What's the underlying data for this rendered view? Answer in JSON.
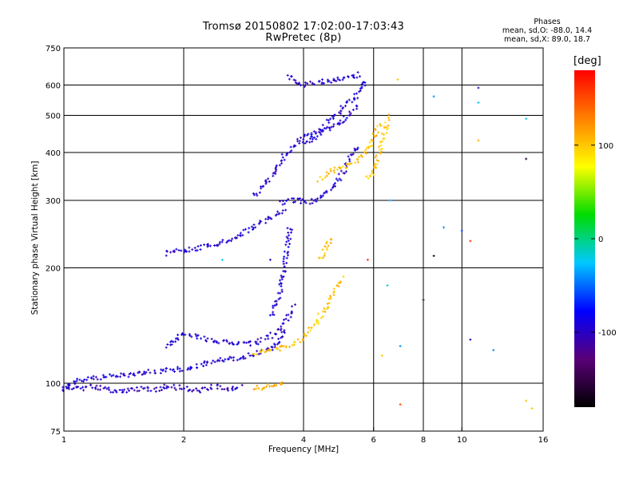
{
  "header": {
    "title_line1": "Tromsø 20150802 17:02:00-17:03:43",
    "title_line2": "RwPretec (8p)"
  },
  "phases_box": {
    "heading": "Phases",
    "mode_o": "mean, sd,O: -88.0, 14.4",
    "mode_x": "mean, sd,X:  89.0, 18.7"
  },
  "colorbar": {
    "unit_label": "[deg]",
    "range": [
      -180,
      180
    ],
    "tick_labels": [
      "100",
      "0",
      "-100"
    ],
    "tick_values": [
      100,
      0,
      -100
    ],
    "colormap": [
      "#000000",
      "#5a0078",
      "#0000ff",
      "#00c8ff",
      "#00dc00",
      "#ffff00",
      "#ff8000",
      "#ff0000"
    ]
  },
  "chart_data": {
    "type": "scatter",
    "title": "Tromsø 20150802 17:02:00-17:03:43",
    "subtitle": "RwPretec (8p)",
    "xlabel": "Frequency [MHz]",
    "ylabel": "Stationary phase Virtual Height [km]",
    "xscale": "log",
    "yscale": "log",
    "xlim": [
      1,
      16
    ],
    "ylim": [
      75,
      750
    ],
    "xticks": [
      1,
      2,
      4,
      6,
      8,
      10,
      16
    ],
    "yticks": [
      75,
      100,
      200,
      300,
      400,
      500,
      600,
      750
    ],
    "grid": true,
    "legend": "colorbar right (phase, deg)",
    "traces": [
      {
        "mode": "O",
        "phase_deg": -95,
        "x": [
          1.0,
          1.05,
          1.1,
          1.2,
          1.3,
          1.4,
          1.5,
          1.6,
          1.8,
          2.0,
          2.1,
          2.3,
          2.5,
          2.8,
          3.0,
          3.2,
          3.4,
          3.5,
          3.6
        ],
        "y": [
          98,
          100,
          102,
          103,
          104,
          105,
          106,
          107,
          108,
          109,
          110,
          113,
          115,
          117,
          119,
          121,
          124,
          130,
          140
        ]
      },
      {
        "mode": "O",
        "phase_deg": -95,
        "x": [
          3.3,
          3.4,
          3.5,
          3.55,
          3.6,
          3.65,
          3.7
        ],
        "y": [
          150,
          160,
          175,
          190,
          210,
          230,
          260
        ]
      },
      {
        "mode": "O",
        "phase_deg": -95,
        "x": [
          1.8,
          1.9,
          2.0,
          2.2,
          2.5,
          2.8,
          3.0,
          3.2,
          3.4,
          3.6,
          3.8
        ],
        "y": [
          125,
          130,
          135,
          132,
          128,
          126,
          127,
          130,
          135,
          145,
          160
        ]
      },
      {
        "mode": "O",
        "phase_deg": -95,
        "x": [
          1.8,
          2.0,
          2.2,
          2.4,
          2.6,
          2.8,
          3.0,
          3.2,
          3.4,
          3.6
        ],
        "y": [
          218,
          222,
          226,
          230,
          236,
          245,
          255,
          265,
          275,
          285
        ]
      },
      {
        "mode": "O",
        "phase_deg": -95,
        "x": [
          3.5,
          3.7,
          3.9,
          4.1,
          4.3,
          4.5,
          4.8,
          5.0,
          5.2,
          5.5
        ],
        "y": [
          296,
          300,
          300,
          297,
          300,
          310,
          330,
          350,
          380,
          420
        ]
      },
      {
        "mode": "O",
        "phase_deg": -95,
        "x": [
          3.0,
          3.2,
          3.4,
          3.6,
          3.8,
          4.0,
          4.2,
          4.4,
          4.6,
          4.8,
          5.0,
          5.2,
          5.5
        ],
        "y": [
          310,
          330,
          360,
          395,
          420,
          440,
          450,
          455,
          460,
          470,
          480,
          500,
          530
        ]
      },
      {
        "mode": "O",
        "phase_deg": -95,
        "x": [
          4.0,
          4.2,
          4.4,
          4.6,
          4.8,
          5.0,
          5.2,
          5.4,
          5.6,
          5.8
        ],
        "y": [
          420,
          430,
          450,
          480,
          500,
          520,
          540,
          560,
          590,
          620
        ]
      },
      {
        "mode": "O",
        "phase_deg": -95,
        "x": [
          3.7,
          3.8,
          4.0,
          4.2,
          4.4,
          4.6,
          4.8,
          5.0,
          5.2,
          5.4,
          5.6
        ],
        "y": [
          640,
          610,
          600,
          605,
          610,
          615,
          620,
          625,
          630,
          635,
          640
        ]
      },
      {
        "mode": "O",
        "phase_deg": -100,
        "x": [
          1.0,
          1.1,
          1.2,
          1.3,
          1.4,
          1.5,
          1.6,
          1.7,
          1.8,
          2.0,
          2.2,
          2.4,
          2.6,
          2.8
        ],
        "y": [
          96,
          97,
          98,
          96,
          95,
          96,
          97,
          96,
          98,
          97,
          96,
          98,
          97,
          98
        ]
      },
      {
        "mode": "X",
        "phase_deg": 100,
        "x": [
          3.0,
          3.2,
          3.4,
          3.6,
          3.8,
          4.0,
          4.2,
          4.4,
          4.6,
          4.8,
          5.0
        ],
        "y": [
          120,
          121,
          122,
          124,
          127,
          132,
          140,
          150,
          160,
          175,
          190
        ]
      },
      {
        "mode": "X",
        "phase_deg": 100,
        "x": [
          4.4,
          4.6,
          4.8,
          5.0,
          5.2,
          5.4,
          5.6,
          5.8,
          6.0,
          6.2
        ],
        "y": [
          340,
          355,
          360,
          365,
          370,
          380,
          390,
          410,
          440,
          480
        ]
      },
      {
        "mode": "X",
        "phase_deg": 100,
        "x": [
          5.8,
          6.0,
          6.2,
          6.4,
          6.5
        ],
        "y": [
          340,
          360,
          400,
          450,
          500
        ]
      },
      {
        "mode": "X",
        "phase_deg": 100,
        "x": [
          4.4,
          4.5,
          4.6,
          4.7
        ],
        "y": [
          210,
          220,
          230,
          240
        ]
      },
      {
        "mode": "X",
        "phase_deg": 110,
        "x": [
          3.0,
          3.2,
          3.4,
          3.6
        ],
        "y": [
          97,
          98,
          99,
          100
        ]
      }
    ],
    "scattered_points": [
      {
        "x": 6.9,
        "y": 620,
        "phase_deg": 100
      },
      {
        "x": 8.5,
        "y": 560,
        "phase_deg": -40
      },
      {
        "x": 11.0,
        "y": 590,
        "phase_deg": -100
      },
      {
        "x": 11.0,
        "y": 540,
        "phase_deg": -20
      },
      {
        "x": 14.5,
        "y": 490,
        "phase_deg": -20
      },
      {
        "x": 11.0,
        "y": 430,
        "phase_deg": 110
      },
      {
        "x": 14.5,
        "y": 385,
        "phase_deg": -160
      },
      {
        "x": 6.6,
        "y": 300,
        "phase_deg": -40
      },
      {
        "x": 9.0,
        "y": 255,
        "phase_deg": -40
      },
      {
        "x": 10.0,
        "y": 250,
        "phase_deg": -60
      },
      {
        "x": 10.5,
        "y": 235,
        "phase_deg": 160
      },
      {
        "x": 8.5,
        "y": 215,
        "phase_deg": -160
      },
      {
        "x": 6.5,
        "y": 180,
        "phase_deg": -20
      },
      {
        "x": 8.0,
        "y": 165,
        "phase_deg": -160
      },
      {
        "x": 10.5,
        "y": 130,
        "phase_deg": -100
      },
      {
        "x": 12.0,
        "y": 122,
        "phase_deg": -40
      },
      {
        "x": 7.0,
        "y": 125,
        "phase_deg": -40
      },
      {
        "x": 6.3,
        "y": 118,
        "phase_deg": 100
      },
      {
        "x": 14.5,
        "y": 90,
        "phase_deg": 100
      },
      {
        "x": 15.0,
        "y": 86,
        "phase_deg": 100
      },
      {
        "x": 7.0,
        "y": 88,
        "phase_deg": 150
      },
      {
        "x": 5.8,
        "y": 210,
        "phase_deg": 160
      },
      {
        "x": 2.5,
        "y": 210,
        "phase_deg": -20
      },
      {
        "x": 3.3,
        "y": 210,
        "phase_deg": -100
      }
    ]
  }
}
